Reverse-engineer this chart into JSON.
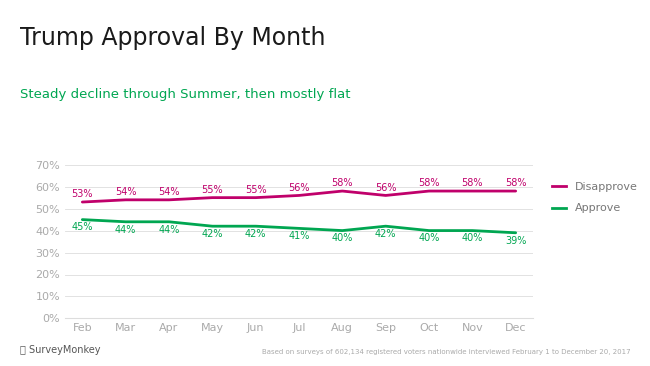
{
  "title": "Trump Approval By Month",
  "subtitle": "Steady decline through Summer, then mostly flat",
  "months": [
    "Feb",
    "Mar",
    "Apr",
    "May",
    "Jun",
    "Jul",
    "Aug",
    "Sep",
    "Oct",
    "Nov",
    "Dec"
  ],
  "disapprove": [
    53,
    54,
    54,
    55,
    55,
    56,
    58,
    56,
    58,
    58,
    58
  ],
  "approve": [
    45,
    44,
    44,
    42,
    42,
    41,
    40,
    42,
    40,
    40,
    39
  ],
  "disapprove_color": "#c0006b",
  "approve_color": "#00a651",
  "title_color": "#1a1a1a",
  "subtitle_color": "#00a651",
  "background_color": "#ffffff",
  "plot_bg_color": "#ffffff",
  "ylim": [
    0,
    70
  ],
  "yticks": [
    0,
    10,
    20,
    30,
    40,
    50,
    60,
    70
  ],
  "ytick_labels": [
    "0%",
    "10%",
    "20%",
    "30%",
    "40%",
    "50%",
    "60%",
    "70%"
  ],
  "footer_left": "SurveyMonkey",
  "footer_right": "Based on surveys of 602,134 registered voters nationwide interviewed February 1 to December 20, 2017",
  "top_bar_color": "#00a651",
  "line_width": 2.0,
  "tick_label_color": "#aaaaaa",
  "grid_color": "#dddddd"
}
